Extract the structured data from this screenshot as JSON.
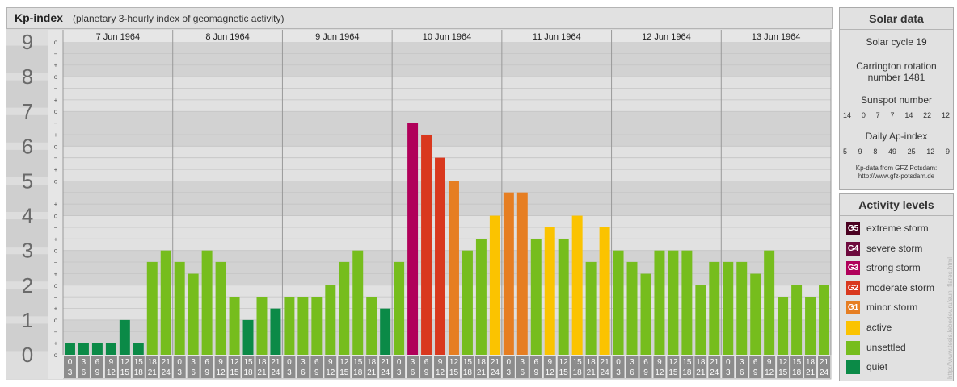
{
  "header": {
    "title": "Kp-index",
    "subtitle": "(planetary 3-hourly index of geomagnetic activity)"
  },
  "colors": {
    "quiet": "#0b8a47",
    "unsettled": "#76bd1d",
    "active": "#fbc300",
    "minor_storm": "#e67e22",
    "moderate_storm": "#d9381e",
    "strong_storm": "#b0005a",
    "severe_storm": "#6e0a3e",
    "extreme_storm": "#4a0020"
  },
  "chart_data": {
    "type": "bar",
    "title": "Kp-index",
    "ylim": [
      0,
      9
    ],
    "y_ticks": [
      "0",
      "1",
      "2",
      "3",
      "4",
      "5",
      "6",
      "7",
      "8",
      "9"
    ],
    "sub_ticks": [
      "o",
      "+",
      "−"
    ],
    "days": [
      "7 Jun 1964",
      "8 Jun 1964",
      "9 Jun 1964",
      "10 Jun 1964",
      "11 Jun 1964",
      "12 Jun 1964",
      "13 Jun 1964"
    ],
    "interval_labels": [
      [
        "0",
        "3"
      ],
      [
        "3",
        "6"
      ],
      [
        "6",
        "9"
      ],
      [
        "9",
        "12"
      ],
      [
        "12",
        "15"
      ],
      [
        "15",
        "18"
      ],
      [
        "18",
        "21"
      ],
      [
        "21",
        "24"
      ]
    ],
    "values": [
      0.33,
      0.33,
      0.33,
      0.33,
      1.0,
      0.33,
      2.67,
      3.0,
      2.67,
      2.33,
      3.0,
      2.67,
      1.67,
      1.0,
      1.67,
      1.33,
      1.67,
      1.67,
      1.67,
      2.0,
      2.67,
      3.0,
      1.67,
      1.33,
      2.67,
      6.67,
      6.33,
      5.67,
      5.0,
      3.0,
      3.33,
      4.0,
      4.67,
      4.67,
      3.33,
      3.67,
      3.33,
      4.0,
      2.67,
      3.67,
      3.0,
      2.67,
      2.33,
      3.0,
      3.0,
      3.0,
      2.0,
      2.67,
      2.67,
      2.67,
      2.33,
      3.0,
      1.67,
      2.0,
      1.67,
      2.0
    ],
    "grid": true
  },
  "solar_panel": {
    "title": "Solar data",
    "solar_cycle": "Solar cycle 19",
    "carrington_line1": "Carrington rotation",
    "carrington_line2": "number 1481",
    "sunspot_title": "Sunspot number",
    "sunspot_values": [
      "14",
      "0",
      "7",
      "7",
      "14",
      "22",
      "12"
    ],
    "ap_title": "Daily Ap-index",
    "ap_values": [
      "5",
      "9",
      "8",
      "49",
      "25",
      "12",
      "9"
    ],
    "source_line1": "Kp-data from GFZ Potsdam:",
    "source_line2": "http://www.gfz-potsdam.de"
  },
  "activity_panel": {
    "title": "Activity levels",
    "items": [
      {
        "badge": "G5",
        "label": "extreme storm",
        "color": "#4a0020"
      },
      {
        "badge": "G4",
        "label": "severe storm",
        "color": "#6e0a3e"
      },
      {
        "badge": "G3",
        "label": "strong storm",
        "color": "#b0005a"
      },
      {
        "badge": "G2",
        "label": "moderate storm",
        "color": "#d9381e"
      },
      {
        "badge": "G1",
        "label": "minor storm",
        "color": "#e67e22"
      },
      {
        "badge": "",
        "label": "active",
        "color": "#fbc300"
      },
      {
        "badge": "",
        "label": "unsettled",
        "color": "#76bd1d"
      },
      {
        "badge": "",
        "label": "quiet",
        "color": "#0b8a47"
      }
    ]
  },
  "watermark": "http://www.tesis.lebedev.ru/sun_flares.html"
}
